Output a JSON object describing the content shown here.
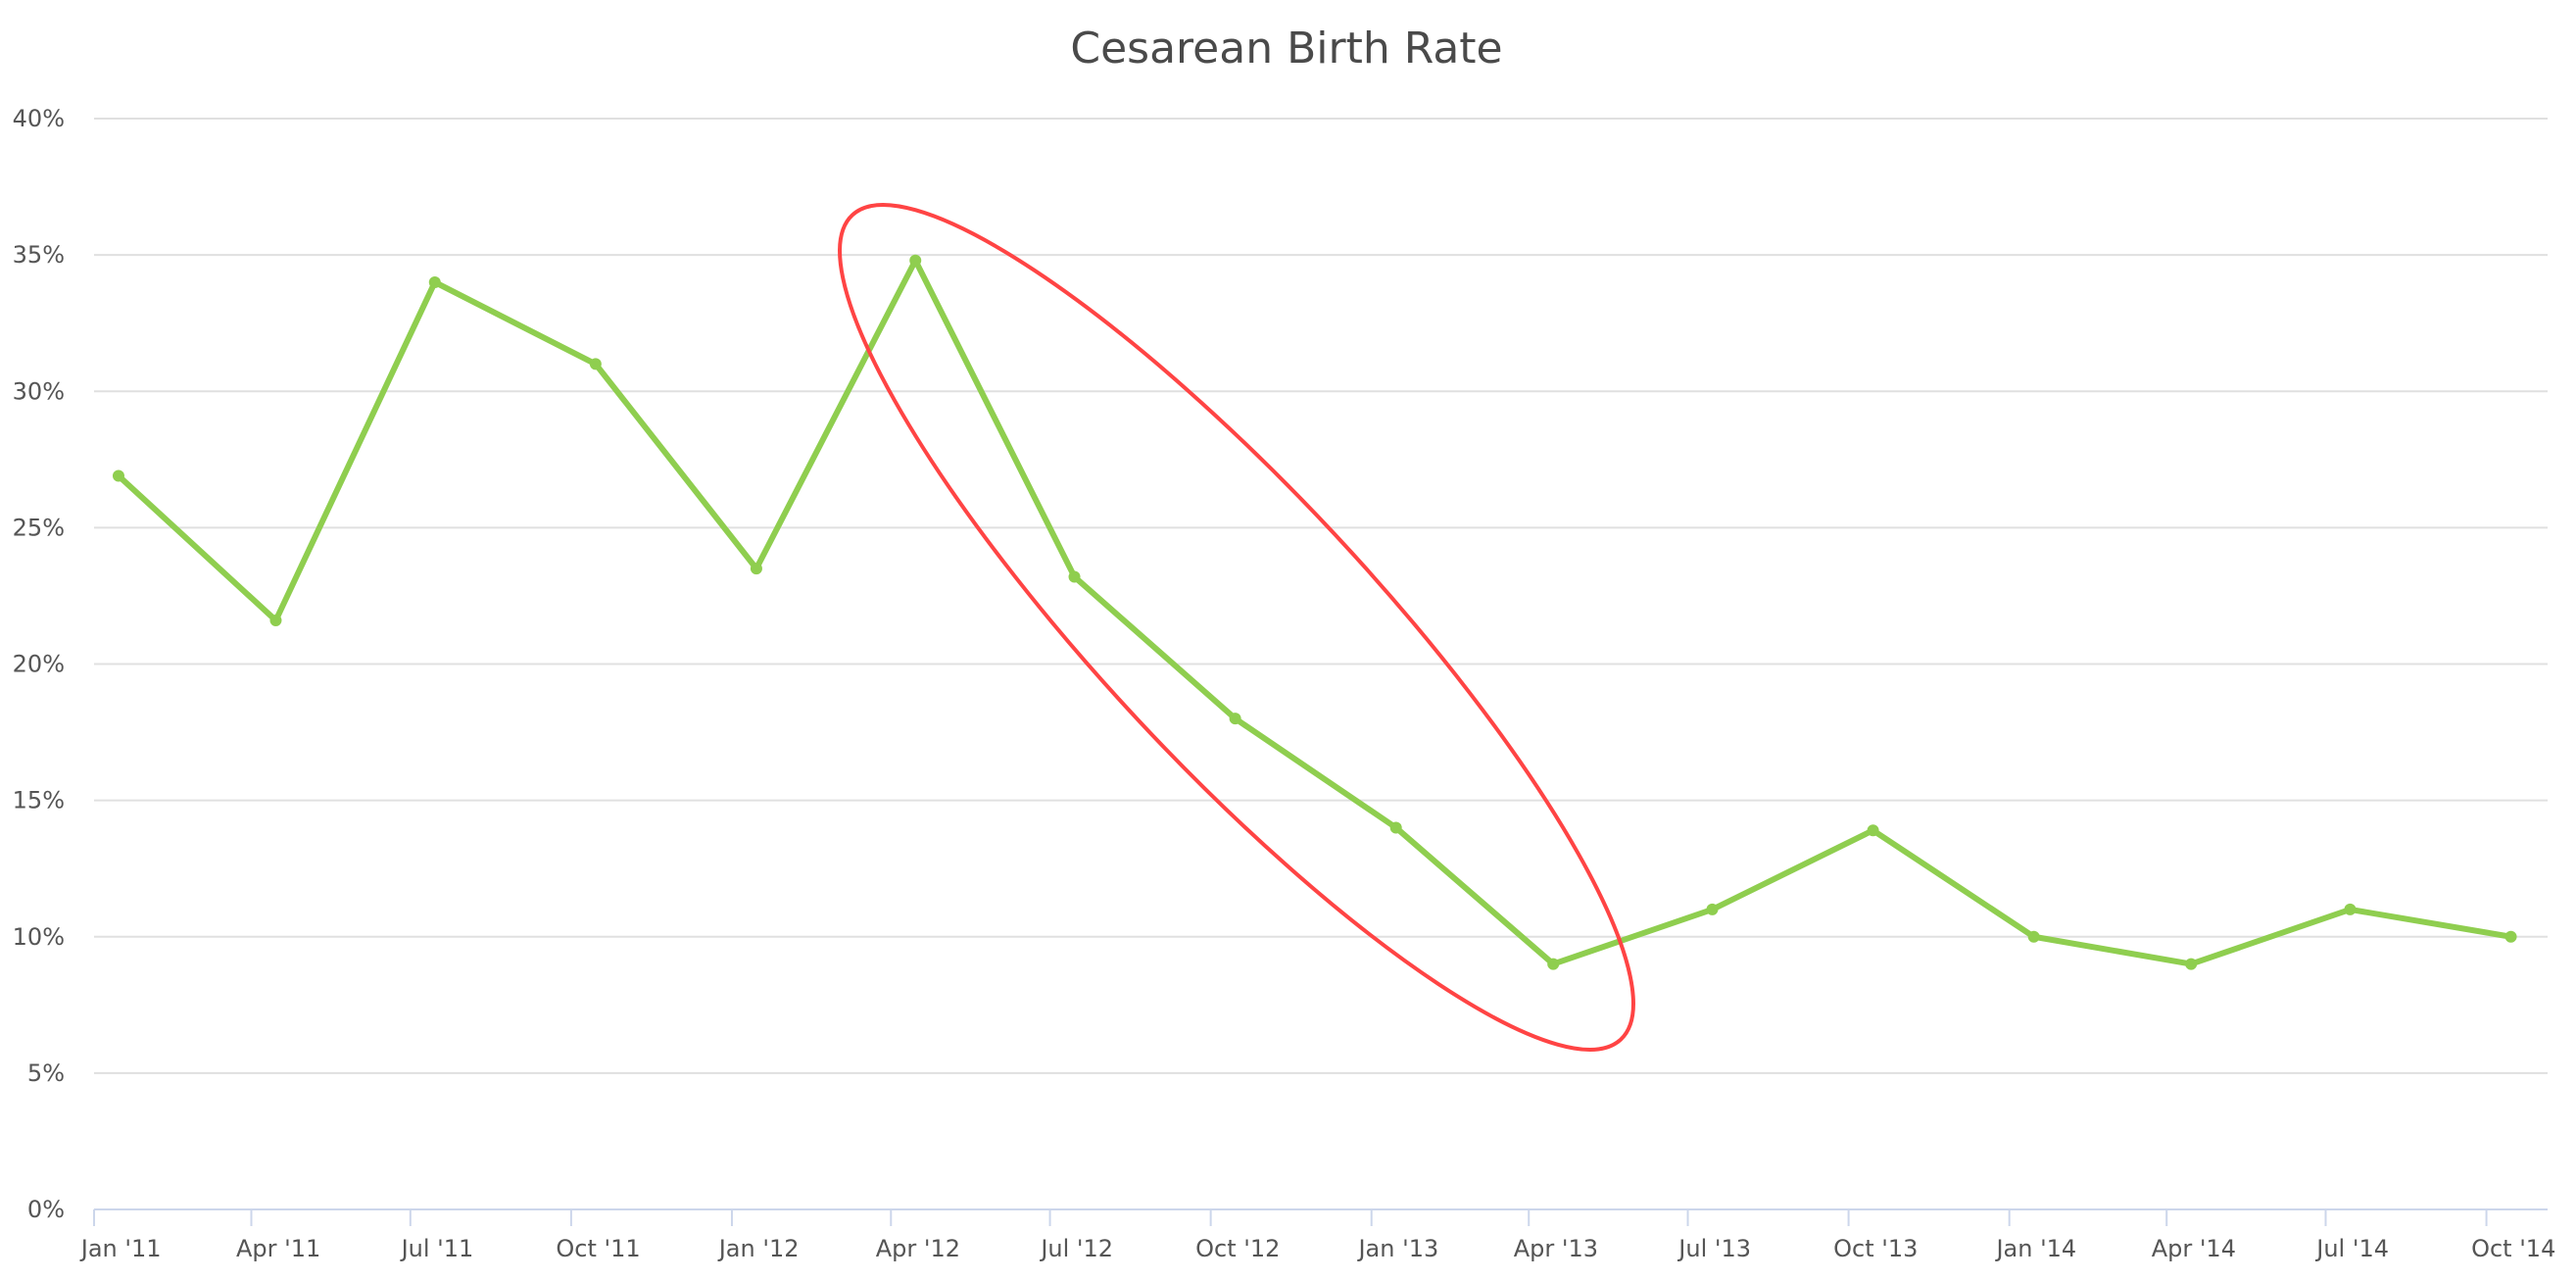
{
  "chart_data": {
    "type": "line",
    "title": "Cesarean Birth Rate",
    "xlabel": "",
    "ylabel": "",
    "x_axis_type": "datetime",
    "xlim": [
      "2011-01-01",
      "2014-11-05"
    ],
    "ylim": [
      0,
      40
    ],
    "y_ticks": [
      0,
      5,
      10,
      15,
      20,
      25,
      30,
      35,
      40
    ],
    "y_tick_labels": [
      "0%",
      "5%",
      "10%",
      "15%",
      "20%",
      "25%",
      "30%",
      "35%",
      "40%"
    ],
    "x_ticks": [
      "2011-01-01",
      "2011-04-01",
      "2011-07-01",
      "2011-10-01",
      "2012-01-01",
      "2012-04-01",
      "2012-07-01",
      "2012-10-01",
      "2013-01-01",
      "2013-04-01",
      "2013-07-01",
      "2013-10-01",
      "2014-01-01",
      "2014-04-01",
      "2014-07-01",
      "2014-10-01"
    ],
    "x_tick_labels": [
      "Jan '11",
      "Apr '11",
      "Jul '11",
      "Oct '11",
      "Jan '12",
      "Apr '12",
      "Jul '12",
      "Oct '12",
      "Jan '13",
      "Apr '13",
      "Jul '13",
      "Oct '13",
      "Jan '14",
      "Apr '14",
      "Jul '14",
      "Oct '14"
    ],
    "grid": true,
    "legend": "none",
    "series": [
      {
        "color": "#8fce4f",
        "x": [
          "2011-01-15",
          "2011-04-15",
          "2011-07-15",
          "2011-10-15",
          "2012-01-15",
          "2012-04-15",
          "2012-07-15",
          "2012-10-15",
          "2013-01-15",
          "2013-04-15",
          "2013-07-15",
          "2013-10-15",
          "2014-01-15",
          "2014-04-15",
          "2014-07-15",
          "2014-10-15"
        ],
        "values": [
          26.9,
          21.6,
          34.0,
          31.0,
          23.5,
          34.8,
          23.2,
          18.0,
          14.0,
          9.0,
          11.0,
          13.9,
          10.0,
          9.0,
          11.0,
          10.0
        ]
      }
    ],
    "annotation": {
      "shape": "ellipse",
      "color": "#ff4444",
      "range": [
        "2012-04-15",
        "2013-04-15"
      ]
    }
  }
}
